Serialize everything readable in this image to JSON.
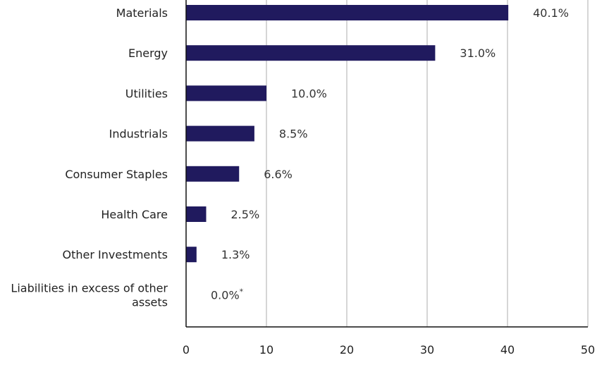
{
  "chart_data": {
    "type": "bar",
    "orientation": "horizontal",
    "categories": [
      "Materials",
      "Energy",
      "Utilities",
      "Industrials",
      "Consumer Staples",
      "Health Care",
      "Other Investments",
      "Liabilities in excess of other assets"
    ],
    "values": [
      40.1,
      31.0,
      10.0,
      8.5,
      6.6,
      2.5,
      1.3,
      0.0
    ],
    "value_labels": [
      "40.1%",
      "31.0%",
      "10.0%",
      "8.5%",
      "6.6%",
      "2.5%",
      "1.3%",
      "0.0%"
    ],
    "value_label_footnote": {
      "index": 7,
      "mark": "*"
    },
    "x_ticks": [
      "0",
      "10",
      "20",
      "30",
      "40",
      "50"
    ],
    "xlim": [
      0,
      50
    ],
    "grid": true,
    "legend": "none",
    "title": "",
    "xlabel": "",
    "ylabel": "",
    "colors": {
      "bar": "#201A5E",
      "grid": "#c8c8c8",
      "axis": "#111111"
    }
  }
}
